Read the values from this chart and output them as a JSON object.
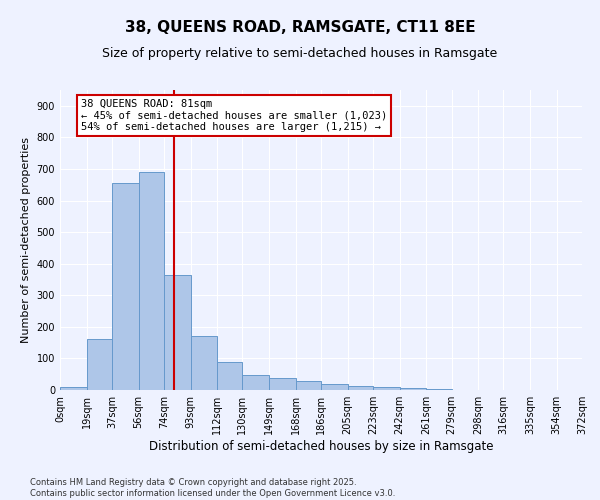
{
  "title": "38, QUEENS ROAD, RAMSGATE, CT11 8EE",
  "subtitle": "Size of property relative to semi-detached houses in Ramsgate",
  "xlabel": "Distribution of semi-detached houses by size in Ramsgate",
  "ylabel": "Number of semi-detached properties",
  "bar_values": [
    8,
    160,
    655,
    690,
    365,
    170,
    88,
    48,
    38,
    30,
    18,
    13,
    10,
    5,
    3,
    0,
    0,
    0,
    0,
    0
  ],
  "bin_labels": [
    "0sqm",
    "19sqm",
    "37sqm",
    "56sqm",
    "74sqm",
    "93sqm",
    "112sqm",
    "130sqm",
    "149sqm",
    "168sqm",
    "186sqm",
    "205sqm",
    "223sqm",
    "242sqm",
    "261sqm",
    "279sqm",
    "298sqm",
    "316sqm",
    "335sqm",
    "354sqm",
    "372sqm"
  ],
  "bin_edges": [
    0,
    19,
    37,
    56,
    74,
    93,
    112,
    130,
    149,
    168,
    186,
    205,
    223,
    242,
    261,
    279,
    298,
    316,
    335,
    354,
    372
  ],
  "bar_color": "#aec6e8",
  "bar_edge_color": "#6699cc",
  "vline_x": 81,
  "vline_color": "#cc0000",
  "annotation_text": "38 QUEENS ROAD: 81sqm\n← 45% of semi-detached houses are smaller (1,023)\n54% of semi-detached houses are larger (1,215) →",
  "annotation_box_color": "#ffffff",
  "annotation_box_edge": "#cc0000",
  "ylim": [
    0,
    950
  ],
  "yticks": [
    0,
    100,
    200,
    300,
    400,
    500,
    600,
    700,
    800,
    900
  ],
  "background_color": "#eef2ff",
  "grid_color": "#ffffff",
  "footer": "Contains HM Land Registry data © Crown copyright and database right 2025.\nContains public sector information licensed under the Open Government Licence v3.0.",
  "title_fontsize": 11,
  "subtitle_fontsize": 9,
  "xlabel_fontsize": 8.5,
  "ylabel_fontsize": 8,
  "tick_fontsize": 7,
  "annotation_fontsize": 7.5,
  "footer_fontsize": 6
}
